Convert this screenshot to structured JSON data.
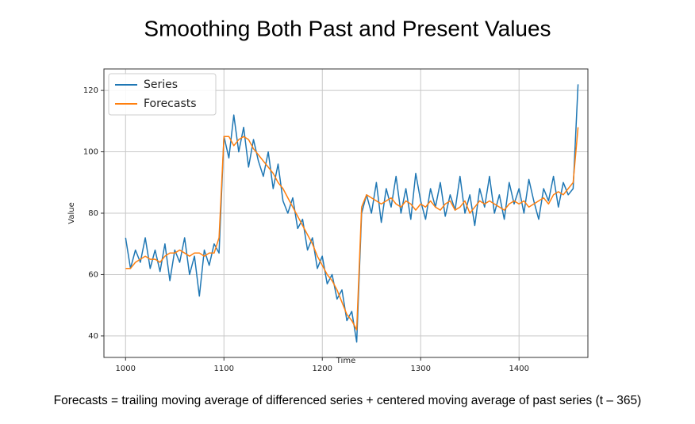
{
  "chart_data": {
    "type": "line",
    "title": "Smoothing Both Past and Present Values",
    "x_label": "Time",
    "y_label": "Value",
    "footnote": "Forecasts = trailing moving average of differenced series + centered moving average of past series (t – 365)",
    "x": [
      1000,
      1005,
      1010,
      1015,
      1020,
      1025,
      1030,
      1035,
      1040,
      1045,
      1050,
      1055,
      1060,
      1065,
      1070,
      1075,
      1080,
      1085,
      1090,
      1095,
      1100,
      1105,
      1110,
      1115,
      1120,
      1125,
      1130,
      1135,
      1140,
      1145,
      1150,
      1155,
      1160,
      1165,
      1170,
      1175,
      1180,
      1185,
      1190,
      1195,
      1200,
      1205,
      1210,
      1215,
      1220,
      1225,
      1230,
      1235,
      1240,
      1245,
      1250,
      1255,
      1260,
      1265,
      1270,
      1275,
      1280,
      1285,
      1290,
      1295,
      1300,
      1305,
      1310,
      1315,
      1320,
      1325,
      1330,
      1335,
      1340,
      1345,
      1350,
      1355,
      1360,
      1365,
      1370,
      1375,
      1380,
      1385,
      1390,
      1395,
      1400,
      1405,
      1410,
      1415,
      1420,
      1425,
      1430,
      1435,
      1440,
      1445,
      1450,
      1455,
      1460
    ],
    "series": [
      {
        "name": "Series",
        "color": "#1f77b4",
        "values": [
          72,
          62,
          68,
          64,
          72,
          62,
          68,
          61,
          70,
          58,
          68,
          64,
          72,
          60,
          66,
          53,
          68,
          63,
          70,
          67,
          105,
          98,
          112,
          100,
          108,
          95,
          104,
          97,
          92,
          100,
          88,
          96,
          84,
          80,
          85,
          75,
          78,
          68,
          72,
          62,
          66,
          57,
          60,
          52,
          55,
          45,
          48,
          38,
          80,
          86,
          80,
          90,
          77,
          88,
          82,
          92,
          80,
          88,
          78,
          93,
          84,
          78,
          88,
          82,
          90,
          79,
          86,
          81,
          92,
          80,
          86,
          76,
          88,
          82,
          92,
          80,
          86,
          78,
          90,
          83,
          88,
          80,
          91,
          84,
          78,
          88,
          84,
          92,
          82,
          90,
          86,
          88,
          122
        ]
      },
      {
        "name": "Forecasts",
        "color": "#ff7f0e",
        "values": [
          62,
          62,
          64,
          65,
          66,
          65,
          65,
          64,
          66,
          67,
          67,
          68,
          67,
          66,
          67,
          67,
          66,
          67,
          67,
          72,
          105,
          105,
          102,
          104,
          105,
          104,
          101,
          99,
          97,
          95,
          93,
          90,
          88,
          85,
          82,
          79,
          76,
          73,
          70,
          66,
          63,
          60,
          58,
          55,
          51,
          47,
          45,
          42,
          82,
          86,
          85,
          84,
          83,
          84,
          85,
          83,
          82,
          84,
          83,
          81,
          83,
          82,
          84,
          82,
          81,
          83,
          84,
          81,
          82,
          84,
          80,
          82,
          84,
          83,
          84,
          83,
          82,
          81,
          83,
          84,
          83,
          84,
          82,
          83,
          84,
          85,
          83,
          86,
          87,
          86,
          88,
          90,
          108
        ]
      }
    ],
    "xlim": [
      978,
      1470
    ],
    "ylim": [
      33,
      127
    ],
    "xticks": [
      1000,
      1100,
      1200,
      1300,
      1400
    ],
    "yticks": [
      40,
      60,
      80,
      100,
      120
    ],
    "grid": true,
    "legend": "upper-left"
  }
}
